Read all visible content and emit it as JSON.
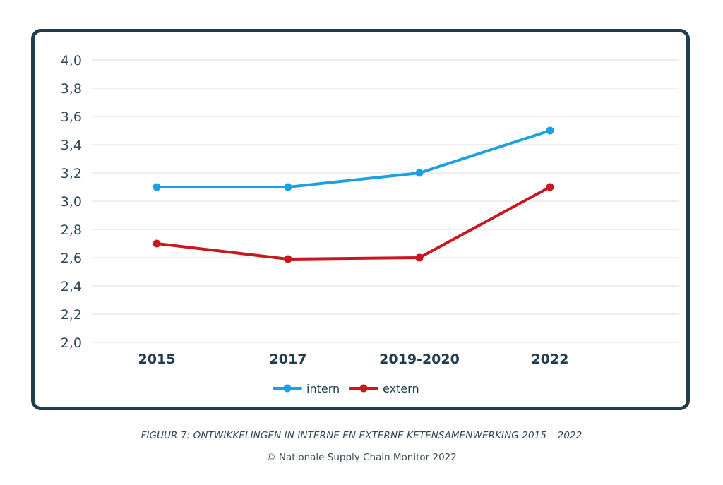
{
  "caption": "FIGUUR 7: ONTWIKKELINGEN IN INTERNE EN EXTERNE KETENSAMENWERKING 2015 – 2022",
  "source": "© Nationale Supply Chain Monitor 2022",
  "chart_data": {
    "type": "line",
    "categories": [
      "2015",
      "2017",
      "2019-2020",
      "2022"
    ],
    "series": [
      {
        "name": "intern",
        "values": [
          3.1,
          3.1,
          3.2,
          3.5
        ],
        "color": "#1ba1e2"
      },
      {
        "name": "extern",
        "values": [
          2.7,
          2.59,
          2.6,
          3.1
        ],
        "color": "#c8171e"
      }
    ],
    "ylim": [
      2.0,
      4.0
    ],
    "yticks": [
      "2,0",
      "2,2",
      "2,4",
      "2,6",
      "2,8",
      "3,0",
      "3,2",
      "3,4",
      "3,6",
      "3,8",
      "4,0"
    ],
    "grid": true,
    "legend": "bottom-center",
    "xlabel": "",
    "ylabel": "",
    "title": ""
  }
}
